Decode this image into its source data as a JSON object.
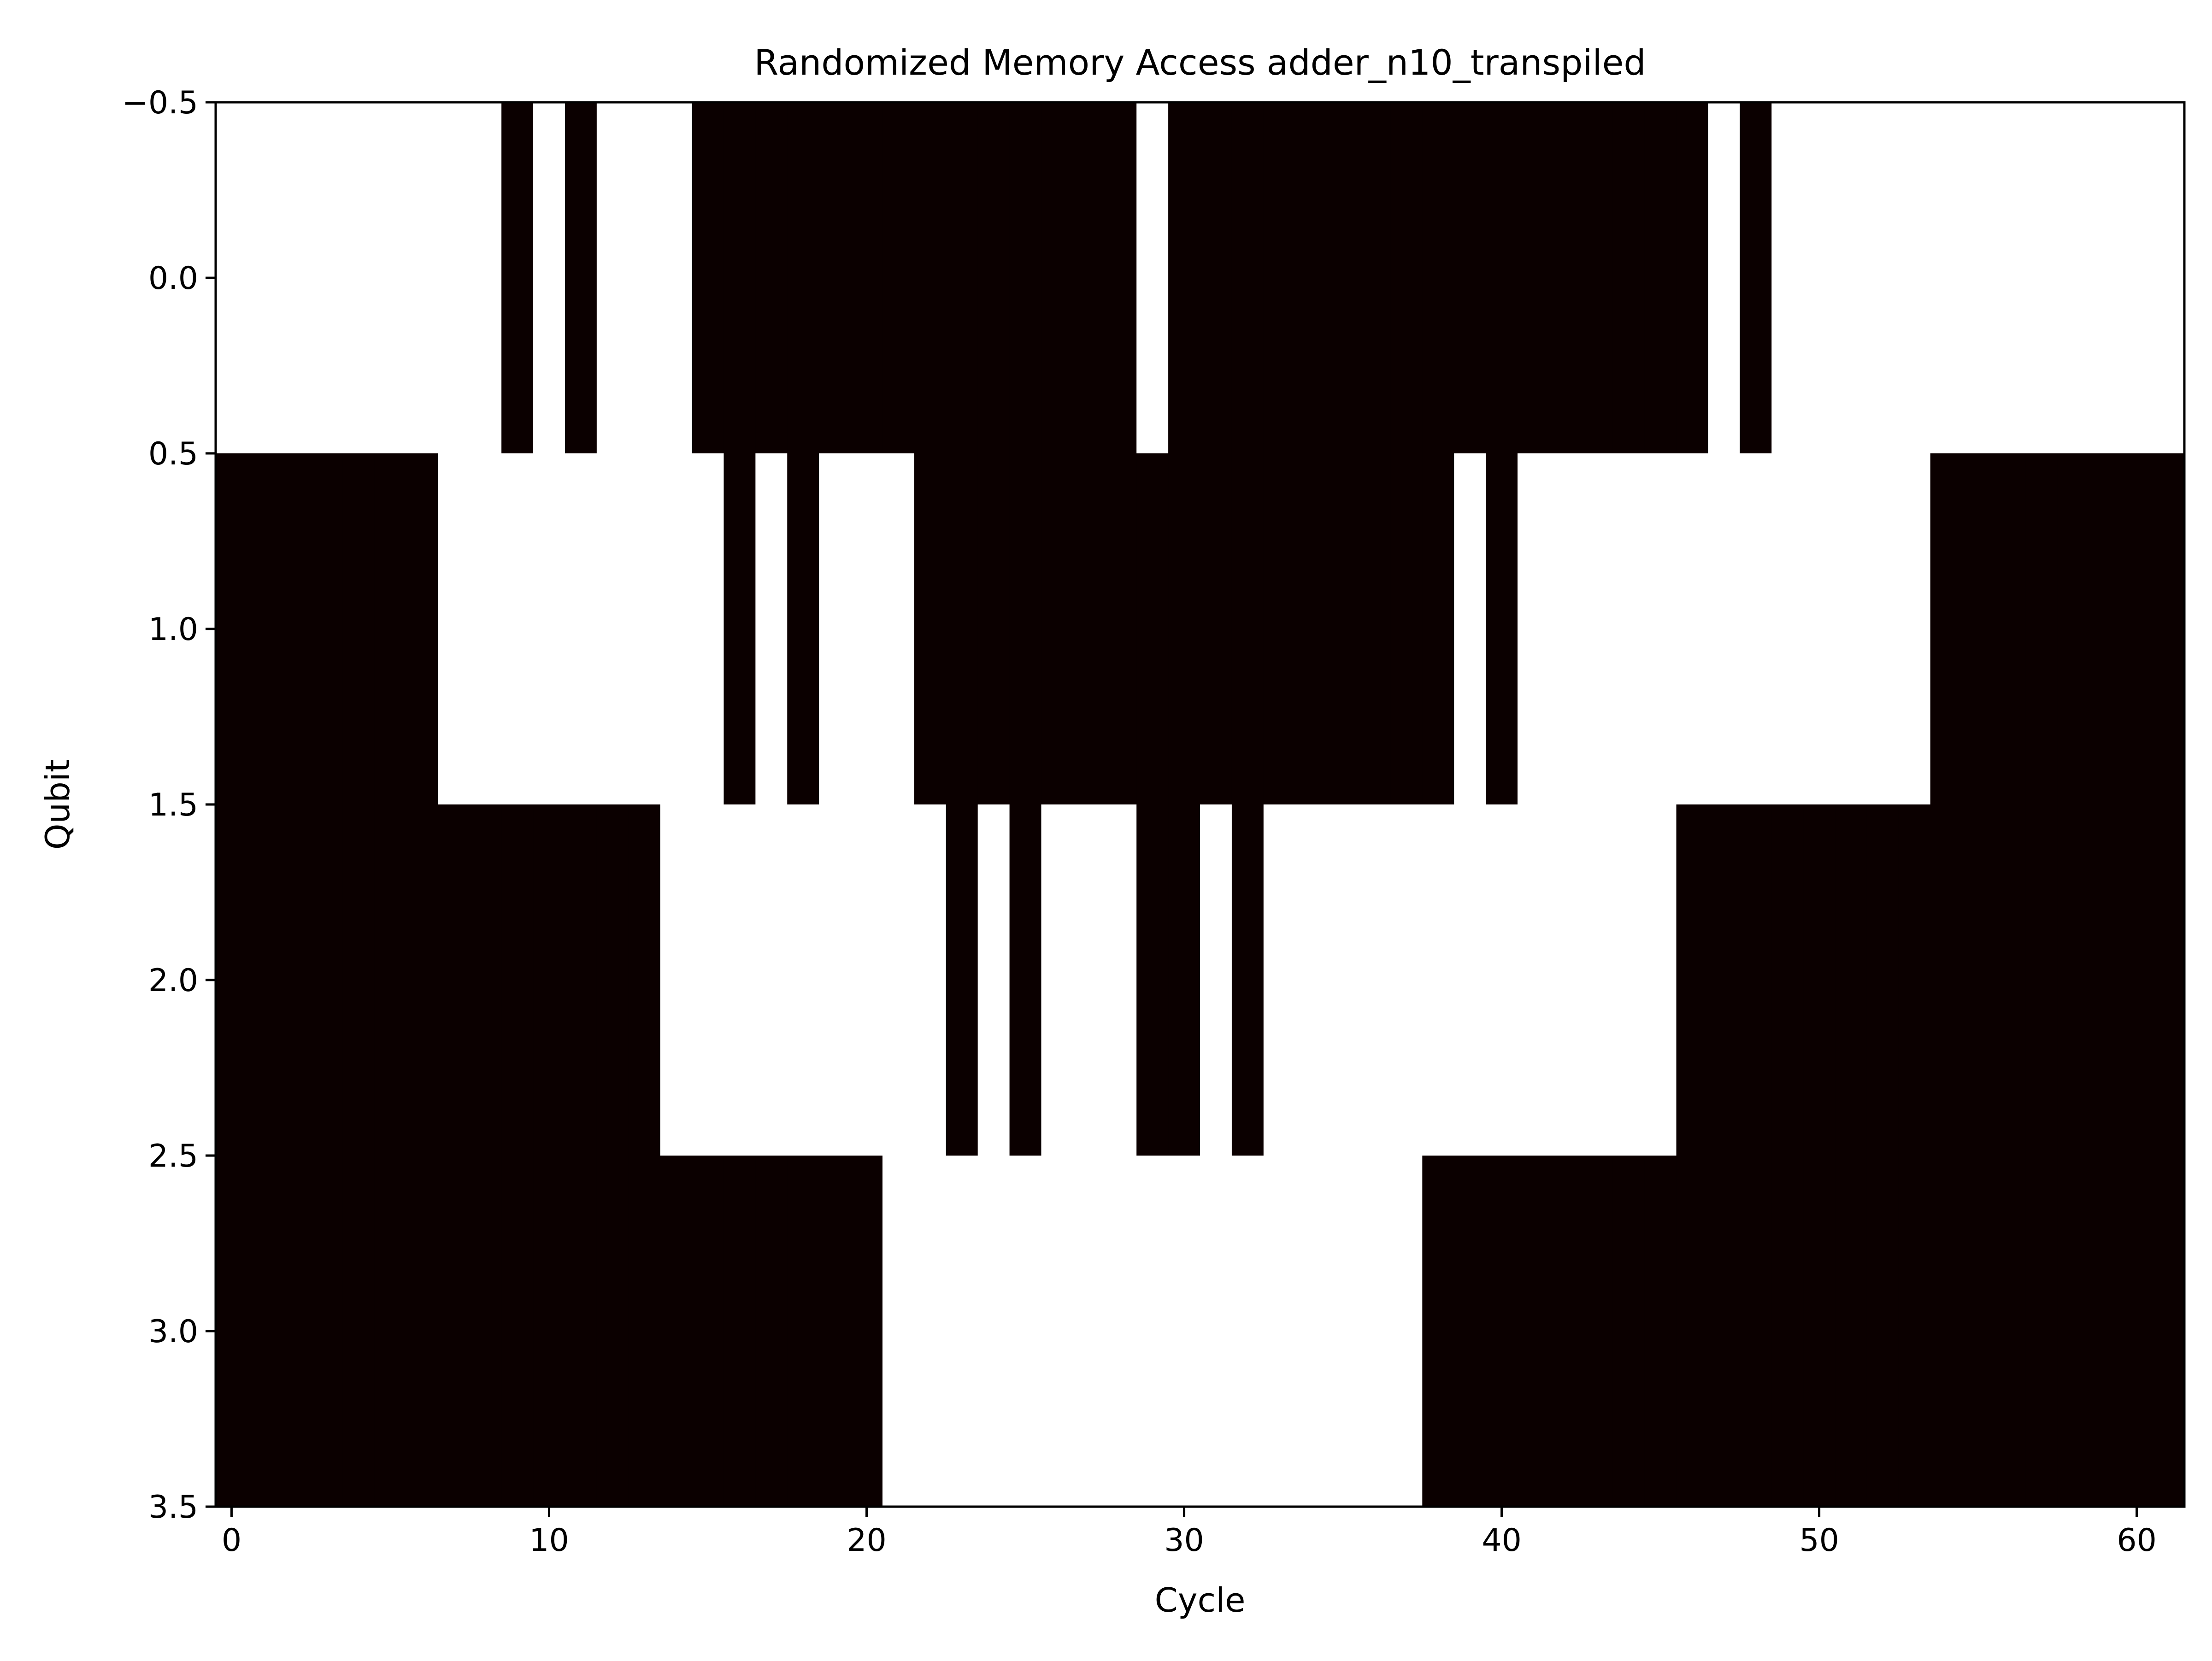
{
  "chart_data": {
    "type": "heatmap",
    "title": "Randomized Memory Access adder_n10_transpiled",
    "xlabel": "Cycle",
    "ylabel": "Qubit",
    "xlim": [
      -0.5,
      61.5
    ],
    "ylim": [
      3.5,
      -0.5
    ],
    "x_ticks": [
      0,
      10,
      20,
      30,
      40,
      50,
      60
    ],
    "y_ticks": [
      -0.5,
      0.0,
      0.5,
      1.0,
      1.5,
      2.0,
      2.5,
      3.0,
      3.5
    ],
    "x_tick_labels": [
      "0",
      "10",
      "20",
      "30",
      "40",
      "50",
      "60"
    ],
    "y_tick_labels": [
      "−0.5",
      "0.0",
      "0.5",
      "1.0",
      "1.5",
      "2.0",
      "2.5",
      "3.0",
      "3.5"
    ],
    "grid": false,
    "colors": {
      "one": "#0b0000",
      "zero": "#ffffff"
    },
    "n_cycles": 62,
    "rows": [
      {
        "qubit": 0,
        "values": [
          0,
          0,
          0,
          0,
          0,
          0,
          0,
          0,
          0,
          1,
          0,
          1,
          0,
          0,
          0,
          1,
          1,
          1,
          1,
          1,
          1,
          1,
          1,
          1,
          1,
          1,
          1,
          1,
          1,
          0,
          1,
          1,
          1,
          1,
          1,
          1,
          1,
          1,
          1,
          1,
          1,
          1,
          1,
          1,
          1,
          1,
          1,
          0,
          1,
          0,
          0,
          0,
          0,
          0,
          0,
          0,
          0,
          0,
          0,
          0,
          0,
          0
        ]
      },
      {
        "qubit": 1,
        "values": [
          1,
          1,
          1,
          1,
          1,
          1,
          1,
          0,
          0,
          0,
          0,
          0,
          0,
          0,
          0,
          0,
          1,
          0,
          1,
          0,
          0,
          0,
          1,
          1,
          1,
          1,
          1,
          1,
          1,
          1,
          1,
          1,
          1,
          1,
          1,
          1,
          1,
          1,
          1,
          0,
          1,
          0,
          0,
          0,
          0,
          0,
          0,
          0,
          0,
          0,
          0,
          0,
          0,
          0,
          1,
          1,
          1,
          1,
          1,
          1,
          1,
          1
        ]
      },
      {
        "qubit": 2,
        "values": [
          1,
          1,
          1,
          1,
          1,
          1,
          1,
          1,
          1,
          1,
          1,
          1,
          1,
          1,
          0,
          0,
          0,
          0,
          0,
          0,
          0,
          0,
          0,
          1,
          0,
          1,
          0,
          0,
          0,
          1,
          1,
          0,
          1,
          0,
          0,
          0,
          0,
          0,
          0,
          0,
          0,
          0,
          0,
          0,
          0,
          0,
          1,
          1,
          1,
          1,
          1,
          1,
          1,
          1,
          1,
          1,
          1,
          1,
          1,
          1,
          1,
          1
        ]
      },
      {
        "qubit": 3,
        "values": [
          1,
          1,
          1,
          1,
          1,
          1,
          1,
          1,
          1,
          1,
          1,
          1,
          1,
          1,
          1,
          1,
          1,
          1,
          1,
          1,
          1,
          0,
          0,
          0,
          0,
          0,
          0,
          0,
          0,
          0,
          0,
          0,
          0,
          0,
          0,
          0,
          0,
          0,
          1,
          1,
          1,
          1,
          1,
          1,
          1,
          1,
          1,
          1,
          1,
          1,
          1,
          1,
          1,
          1,
          1,
          1,
          1,
          1,
          1,
          1,
          1,
          1
        ]
      }
    ]
  }
}
